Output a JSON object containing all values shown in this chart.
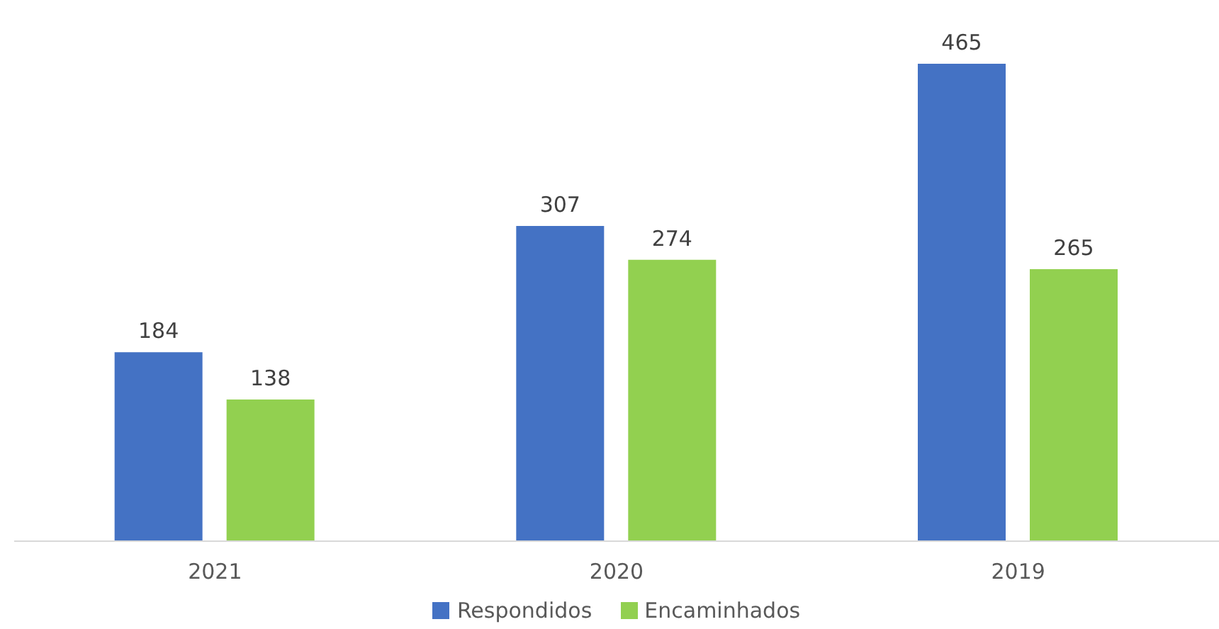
{
  "chart_data": {
    "type": "bar",
    "categories": [
      "2021",
      "2020",
      "2019"
    ],
    "series": [
      {
        "name": "Respondidos",
        "color": "#4472c4",
        "values": [
          184,
          307,
          465
        ]
      },
      {
        "name": "Encaminhados",
        "color": "#92d050",
        "values": [
          138,
          274,
          265
        ]
      }
    ],
    "data_labels": true,
    "grid": false,
    "legend": "bottom"
  }
}
